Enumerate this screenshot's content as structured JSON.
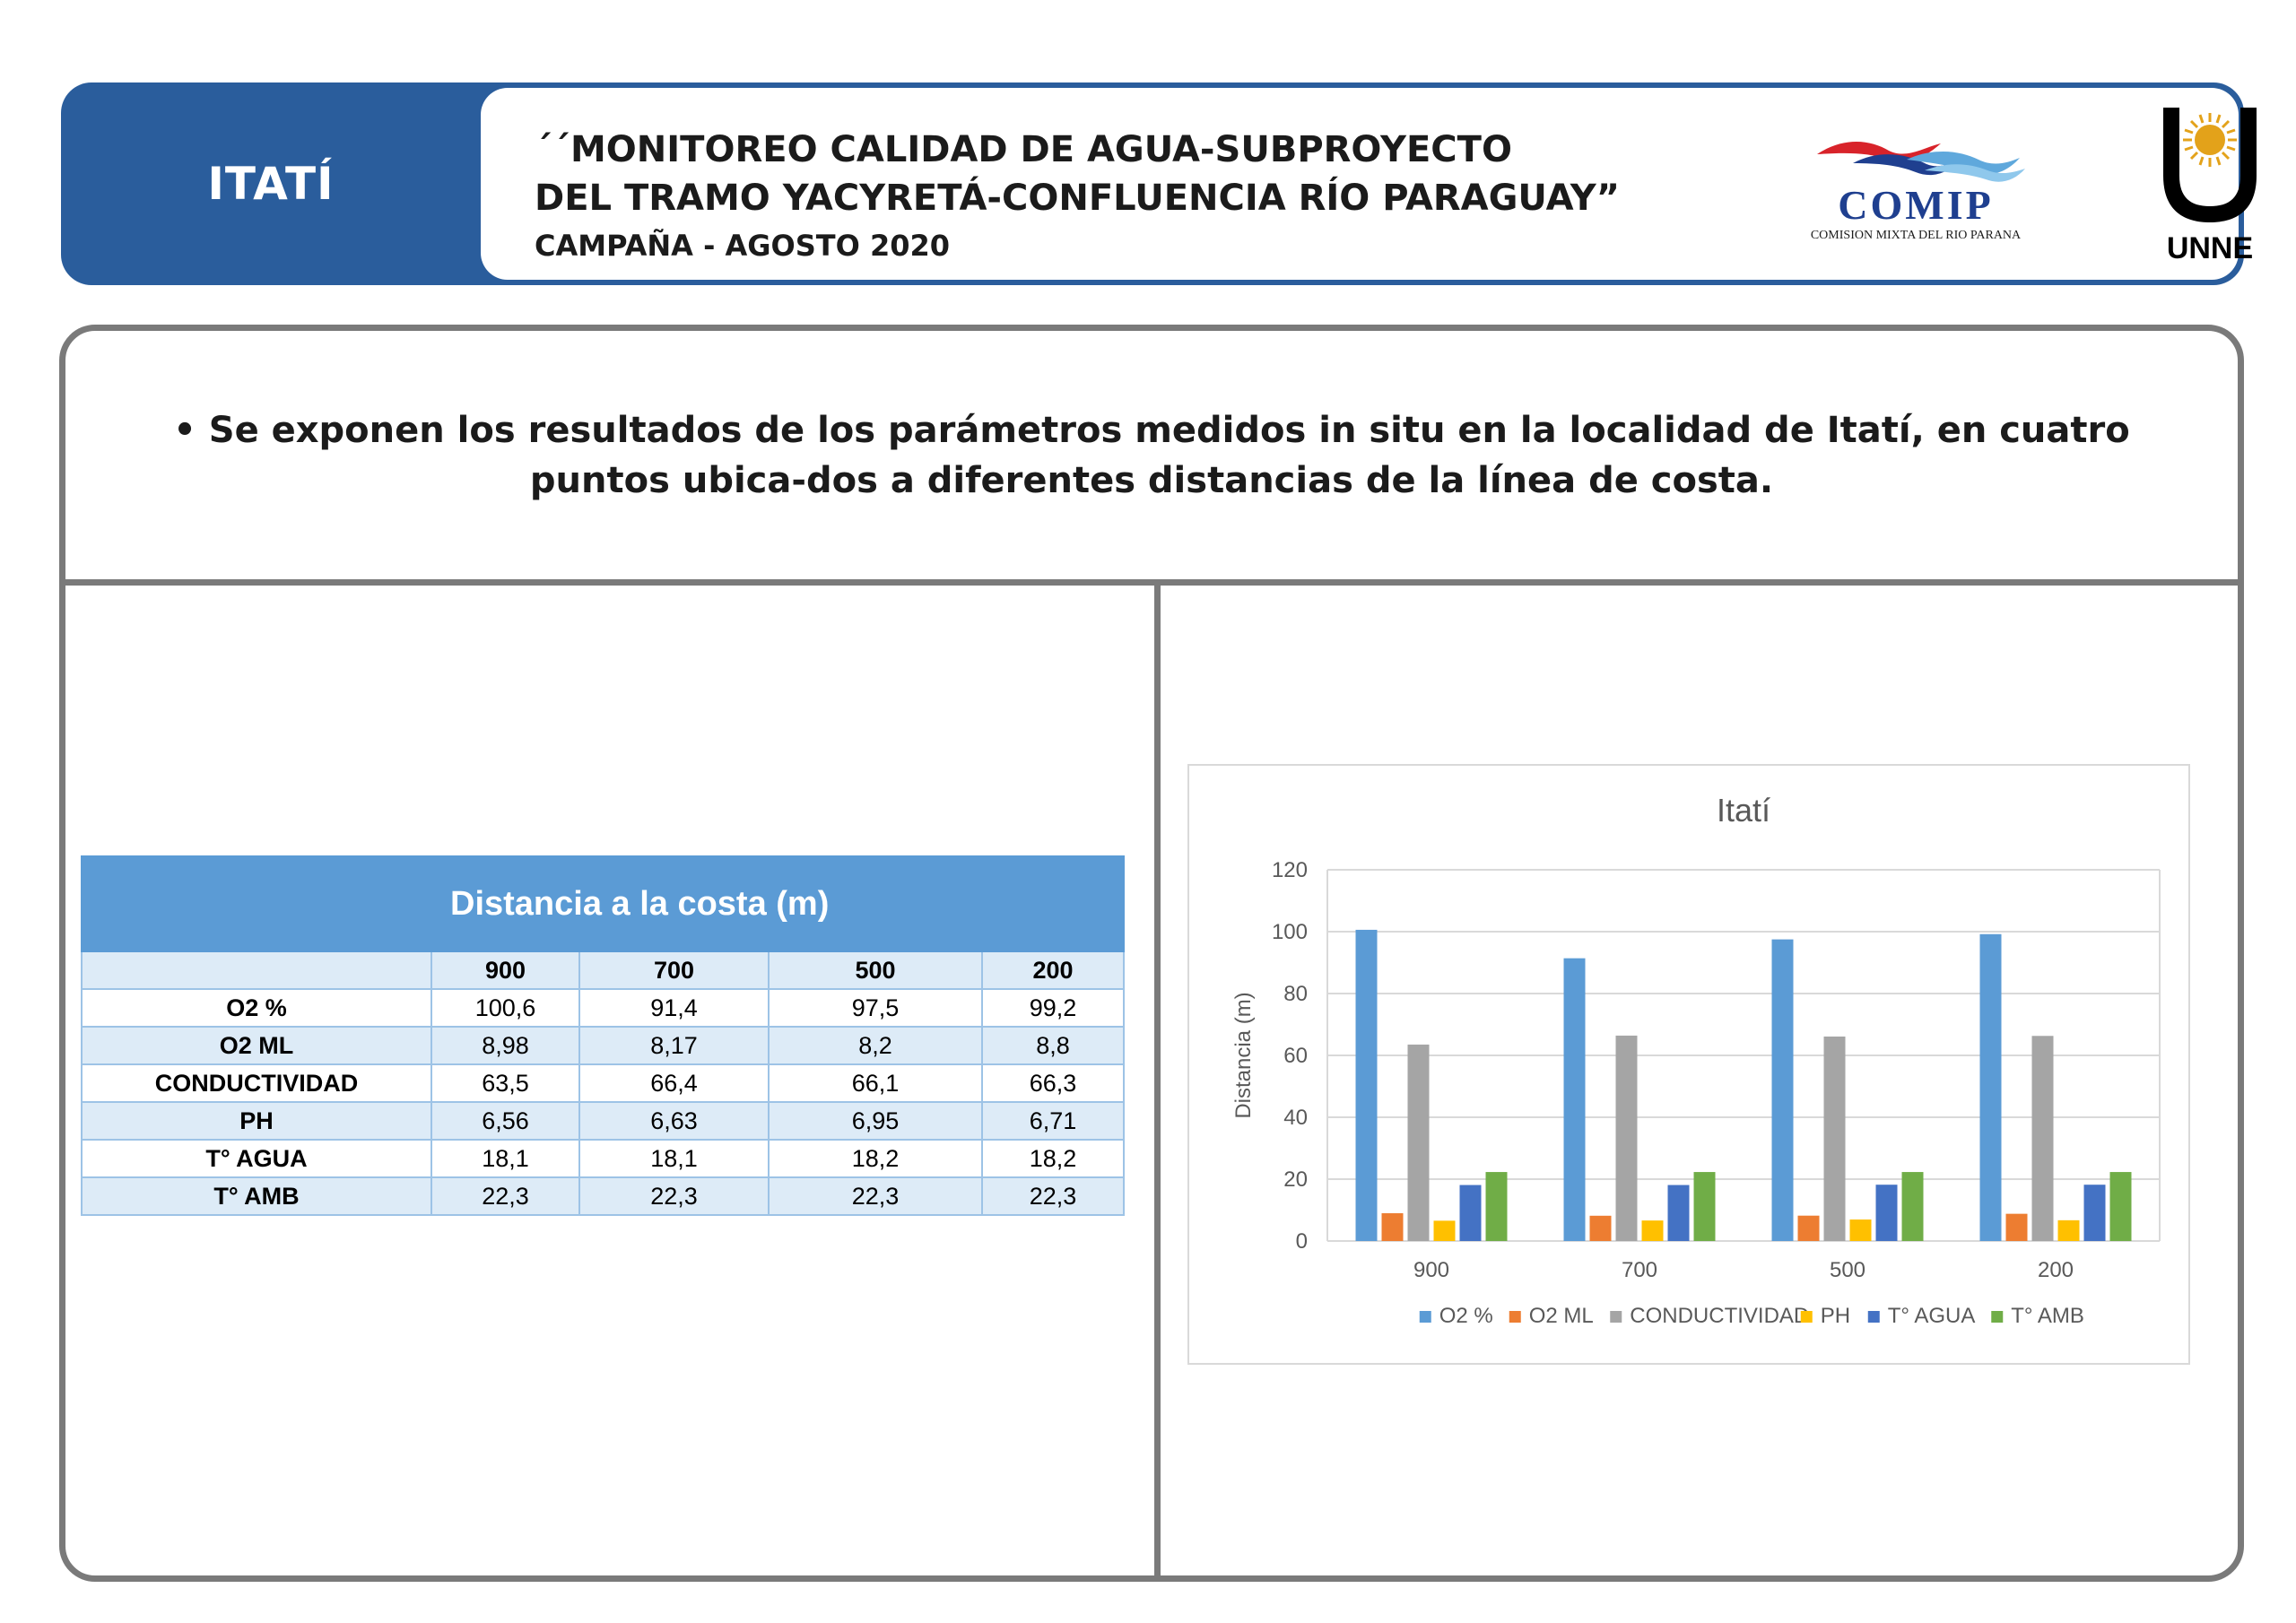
{
  "header": {
    "place": "ITATÍ",
    "title_line1": "´´MONITOREO CALIDAD DE AGUA-SUBPROYECTO",
    "title_line2": "DEL TRAMO YACYRETÁ-CONFLUENCIA RÍO PARAGUAY”",
    "subtitle": "CAMPAÑA - AGOSTO 2020",
    "comip_name": "COMIP",
    "comip_sub": "COMISION MIXTA DEL RIO PARANA",
    "unne_name": "UNNE"
  },
  "intro": "• Se exponen los resultados de los parámetros medidos in situ en la localidad de Itatí, en cuatro puntos ubica-dos a diferentes distancias de la línea de costa.",
  "table": {
    "header": "Distancia a la costa (m)",
    "columns": [
      "900",
      "700",
      "500",
      "200"
    ],
    "rows": [
      {
        "label": "O2 %",
        "values": [
          "100,6",
          "91,4",
          "97,5",
          "99,2"
        ]
      },
      {
        "label": "O2 ML",
        "values": [
          "8,98",
          "8,17",
          "8,2",
          "8,8"
        ]
      },
      {
        "label": "CONDUCTIVIDAD",
        "values": [
          "63,5",
          "66,4",
          "66,1",
          "66,3"
        ]
      },
      {
        "label": "PH",
        "values": [
          "6,56",
          "6,63",
          "6,95",
          "6,71"
        ]
      },
      {
        "label": "T° AGUA",
        "values": [
          "18,1",
          "18,1",
          "18,2",
          "18,2"
        ]
      },
      {
        "label": "T° AMB",
        "values": [
          "22,3",
          "22,3",
          "22,3",
          "22,3"
        ]
      }
    ]
  },
  "chart_data": {
    "type": "bar",
    "title": "Itatí",
    "ylabel": "Distancia (m)",
    "xlabel": "",
    "categories": [
      "900",
      "700",
      "500",
      "200"
    ],
    "ylim": [
      0,
      120
    ],
    "yticks": [
      0,
      20,
      40,
      60,
      80,
      100,
      120
    ],
    "grid": true,
    "legend": "bottom",
    "series": [
      {
        "name": "O2 %",
        "color": "#5b9bd5",
        "values": [
          100.6,
          91.4,
          97.5,
          99.2
        ]
      },
      {
        "name": "O2 ML",
        "color": "#ed7d31",
        "values": [
          8.98,
          8.17,
          8.2,
          8.8
        ]
      },
      {
        "name": "CONDUCTIVIDAD",
        "color": "#a5a5a5",
        "values": [
          63.5,
          66.4,
          66.1,
          66.3
        ]
      },
      {
        "name": "PH",
        "color": "#ffc000",
        "values": [
          6.56,
          6.63,
          6.95,
          6.71
        ]
      },
      {
        "name": "T° AGUA",
        "color": "#4472c4",
        "values": [
          18.1,
          18.1,
          18.2,
          18.2
        ]
      },
      {
        "name": "T° AMB",
        "color": "#70ad47",
        "values": [
          22.3,
          22.3,
          22.3,
          22.3
        ]
      }
    ]
  }
}
